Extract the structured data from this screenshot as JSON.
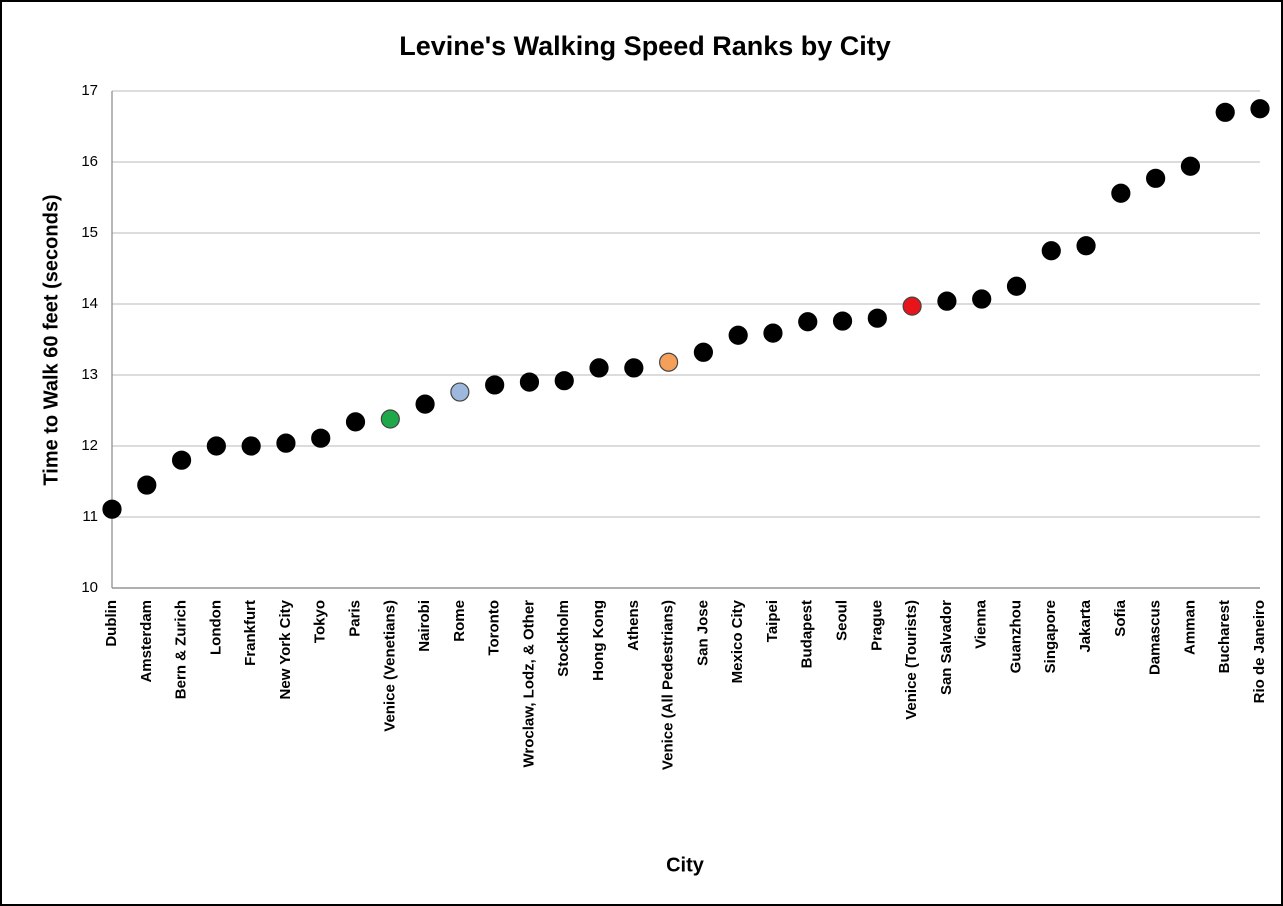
{
  "chart_data": {
    "type": "scatter",
    "title": "Levine's Walking Speed Ranks by City",
    "x_label": "City",
    "y_label": "Time to Walk 60 feet (seconds)",
    "categories": [
      "Dublin",
      "Amsterdam",
      "Bern & Zurich",
      "London",
      "Frankfurt",
      "New York City",
      "Tokyo",
      "Paris",
      "Venice (Venetians)",
      "Nairobi",
      "Rome",
      "Toronto",
      "Wroclaw, Lodz, & Other",
      "Stockholm",
      "Hong Kong",
      "Athens",
      "Venice (All Pedestrians)",
      "San Jose",
      "Mexico City",
      "Taipei",
      "Budapest",
      "Seoul",
      "Prague",
      "Venice (Tourists)",
      "San Salvador",
      "Vienna",
      "Guanzhou",
      "Singapore",
      "Jakarta",
      "Sofia",
      "Damascus",
      "Amman",
      "Bucharest",
      "Rio de Janeiro"
    ],
    "values": [
      11.11,
      11.45,
      11.8,
      12.0,
      12.0,
      12.04,
      12.11,
      12.34,
      12.38,
      12.59,
      12.76,
      12.86,
      12.9,
      12.92,
      13.1,
      13.1,
      13.18,
      13.32,
      13.56,
      13.59,
      13.75,
      13.76,
      13.8,
      13.97,
      14.04,
      14.07,
      14.25,
      14.75,
      14.82,
      15.56,
      15.77,
      15.94,
      16.7,
      16.75
    ],
    "colors": [
      "#000000",
      "#000000",
      "#000000",
      "#000000",
      "#000000",
      "#000000",
      "#000000",
      "#000000",
      "#1fa84a",
      "#000000",
      "#9db8dc",
      "#000000",
      "#000000",
      "#000000",
      "#000000",
      "#000000",
      "#f5a05a",
      "#000000",
      "#000000",
      "#000000",
      "#000000",
      "#000000",
      "#000000",
      "#e8141c",
      "#000000",
      "#000000",
      "#000000",
      "#000000",
      "#000000",
      "#000000",
      "#000000",
      "#000000",
      "#000000",
      "#000000"
    ],
    "ylim": [
      10,
      17
    ],
    "yticks": [
      10,
      11,
      12,
      13,
      14,
      15,
      16,
      17
    ],
    "grid": true
  }
}
